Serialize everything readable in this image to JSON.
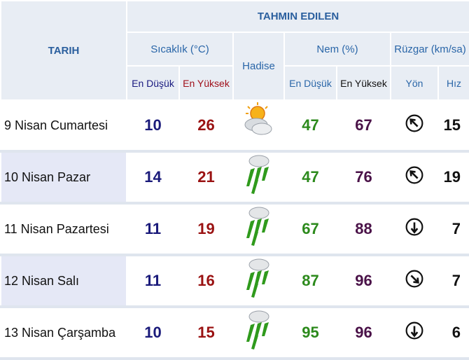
{
  "header": {
    "forecast": "TAHMIN EDILEN",
    "date": "TARIH",
    "temperature": "Sıcaklık (°C)",
    "event": "Hadise",
    "humidity": "Nem (%)",
    "wind": "Rüzgar (km/sa)",
    "temp_low": "En Düşük",
    "temp_high": "En Yüksek",
    "hum_low": "En Düşük",
    "hum_high": "En Yüksek",
    "direction": "Yön",
    "speed": "Hız"
  },
  "table": {
    "rows": [
      [
        "9 Nisan Cumartesi",
        10,
        26,
        47,
        67,
        15
      ],
      [
        "10 Nisan Pazar",
        14,
        21,
        47,
        76,
        19
      ],
      [
        "11 Nisan Pazartesi",
        11,
        19,
        67,
        88,
        7
      ],
      [
        "12 Nisan Salı",
        11,
        16,
        87,
        96,
        7
      ],
      [
        "13 Nisan Çarşamba",
        10,
        15,
        95,
        96,
        6
      ]
    ]
  }
}
